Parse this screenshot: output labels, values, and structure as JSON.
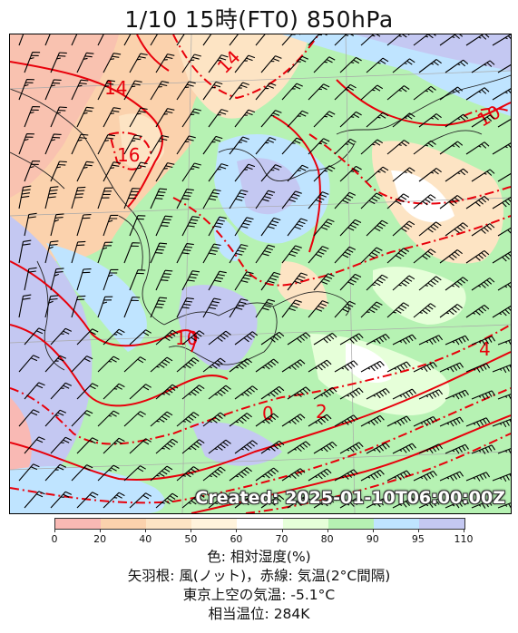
{
  "title": "1/10  15時(FT0)    850hPa",
  "created": "Created: 2025-01-10T06:00:00Z",
  "colorbar": {
    "ticks": [
      "0",
      "20",
      "40",
      "50",
      "60",
      "70",
      "80",
      "90",
      "95",
      "110"
    ],
    "colors": [
      "#f9b9b4",
      "#fbd2ad",
      "#fde4c4",
      "#fff3dc",
      "#ffffff",
      "#e6ffd9",
      "#b6f2b3",
      "#bfe4ff",
      "#c4c8f2"
    ]
  },
  "isotherm_labels": [
    "14",
    "14",
    "16",
    "10",
    "10",
    "0",
    "2",
    "4"
  ],
  "caption": {
    "line1": "色: 相対湿度(%)",
    "line2": "矢羽根: 風(ノット)，赤線: 気温(2°C間隔)",
    "line3": "東京上空の気温: -5.1°C",
    "line4": "相当温位: 284K"
  },
  "colors": {
    "isotherm": "#e8000b",
    "coast": "#222222",
    "barb": "#000000"
  }
}
